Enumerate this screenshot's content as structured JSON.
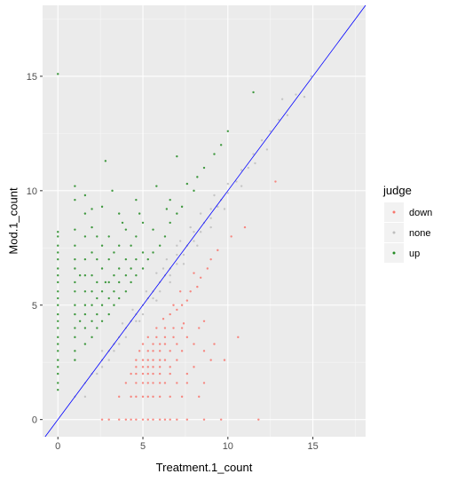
{
  "chart_data": {
    "type": "scatter",
    "xlabel": "Treatment.1_count",
    "ylabel": "Mod.1_count",
    "xlim": [
      -0.9,
      18.1
    ],
    "ylim": [
      -0.75,
      18.1
    ],
    "x_ticks": [
      0,
      5,
      10,
      15
    ],
    "y_ticks": [
      0,
      5,
      10,
      15
    ],
    "grid": true,
    "background": "#ebebeb",
    "legend": {
      "title": "judge",
      "position": "right",
      "entries": [
        {
          "label": "down",
          "color": "#f8766d"
        },
        {
          "label": "none",
          "color": "#bebebe"
        },
        {
          "label": "up",
          "color": "#228b22"
        }
      ]
    },
    "reference_line": {
      "type": "identity",
      "slope": 1,
      "intercept": 0,
      "color": "#0000ff"
    },
    "series": [
      {
        "name": "none",
        "color": "#bebebe",
        "points": [
          [
            1.0,
            1.0
          ],
          [
            1.6,
            1.0
          ],
          [
            2.0,
            2.0
          ],
          [
            2.3,
            2.0
          ],
          [
            2.6,
            2.6
          ],
          [
            3.0,
            2.6
          ],
          [
            3.0,
            3.0
          ],
          [
            3.3,
            3.3
          ],
          [
            3.6,
            3.3
          ],
          [
            3.6,
            3.6
          ],
          [
            4.0,
            3.6
          ],
          [
            4.0,
            4.0
          ],
          [
            4.3,
            4.3
          ],
          [
            4.6,
            4.3
          ],
          [
            4.6,
            4.6
          ],
          [
            5.0,
            4.6
          ],
          [
            5.0,
            5.0
          ],
          [
            5.3,
            5.3
          ],
          [
            5.6,
            5.3
          ],
          [
            5.6,
            5.6
          ],
          [
            6.0,
            5.6
          ],
          [
            6.0,
            6.0
          ],
          [
            6.3,
            6.3
          ],
          [
            6.6,
            6.3
          ],
          [
            6.6,
            6.6
          ],
          [
            7.0,
            6.8
          ],
          [
            7.0,
            7.2
          ],
          [
            7.4,
            7.2
          ],
          [
            7.6,
            7.6
          ],
          [
            8.0,
            7.8
          ],
          [
            8.0,
            8.2
          ],
          [
            8.4,
            8.2
          ],
          [
            8.6,
            8.6
          ],
          [
            9.0,
            8.8
          ],
          [
            9.0,
            9.2
          ],
          [
            9.4,
            9.3
          ],
          [
            9.6,
            9.6
          ],
          [
            10.0,
            9.9
          ],
          [
            10.0,
            10.3
          ],
          [
            10.5,
            10.4
          ],
          [
            10.8,
            10.9
          ],
          [
            11.2,
            11.0
          ],
          [
            11.5,
            11.6
          ],
          [
            12.0,
            12.2
          ],
          [
            12.5,
            12.6
          ],
          [
            13.0,
            13.1
          ],
          [
            13.5,
            13.3
          ],
          [
            14.0,
            14.2
          ],
          [
            14.5,
            14.1
          ],
          [
            13.2,
            14.0
          ],
          [
            14.9,
            15.0
          ],
          [
            5.2,
            5.6
          ],
          [
            5.8,
            6.4
          ],
          [
            6.4,
            7.0
          ],
          [
            7.0,
            7.6
          ],
          [
            7.8,
            8.4
          ],
          [
            8.4,
            9.0
          ],
          [
            9.2,
            9.8
          ],
          [
            6.6,
            6.0
          ],
          [
            7.4,
            6.8
          ],
          [
            8.2,
            7.6
          ],
          [
            9.0,
            8.4
          ],
          [
            9.8,
            9.2
          ],
          [
            3.8,
            4.2
          ],
          [
            4.4,
            4.8
          ],
          [
            2.6,
            3.0
          ],
          [
            3.3,
            3.0
          ],
          [
            4.8,
            4.3
          ],
          [
            1.6,
            1.6
          ],
          [
            2.6,
            2.3
          ],
          [
            5.8,
            5.2
          ],
          [
            6.2,
            6.6
          ],
          [
            7.2,
            7.8
          ],
          [
            10.8,
            10.2
          ],
          [
            11.6,
            11.2
          ],
          [
            12.3,
            11.8
          ]
        ]
      },
      {
        "name": "down",
        "color": "#f8766d",
        "points": [
          [
            2.6,
            0.0
          ],
          [
            3.0,
            0.0
          ],
          [
            3.6,
            0.0
          ],
          [
            4.0,
            0.0
          ],
          [
            4.3,
            0.0
          ],
          [
            4.6,
            0.0
          ],
          [
            5.0,
            0.0
          ],
          [
            5.3,
            0.0
          ],
          [
            5.6,
            0.0
          ],
          [
            6.0,
            0.0
          ],
          [
            6.3,
            0.0
          ],
          [
            6.6,
            0.0
          ],
          [
            7.0,
            0.0
          ],
          [
            7.6,
            0.0
          ],
          [
            8.6,
            0.0
          ],
          [
            9.6,
            0.0
          ],
          [
            11.8,
            0.0
          ],
          [
            3.6,
            1.0
          ],
          [
            4.3,
            1.0
          ],
          [
            4.6,
            1.0
          ],
          [
            5.0,
            1.0
          ],
          [
            5.3,
            1.0
          ],
          [
            5.6,
            1.0
          ],
          [
            6.0,
            1.0
          ],
          [
            6.6,
            1.0
          ],
          [
            7.3,
            1.0
          ],
          [
            8.3,
            1.0
          ],
          [
            4.0,
            1.6
          ],
          [
            4.6,
            1.6
          ],
          [
            5.0,
            1.6
          ],
          [
            5.3,
            1.6
          ],
          [
            5.6,
            1.6
          ],
          [
            6.0,
            1.6
          ],
          [
            6.3,
            1.6
          ],
          [
            7.0,
            1.6
          ],
          [
            7.6,
            1.6
          ],
          [
            8.6,
            1.6
          ],
          [
            4.3,
            2.0
          ],
          [
            4.6,
            2.0
          ],
          [
            5.0,
            2.0
          ],
          [
            5.3,
            2.0
          ],
          [
            5.6,
            2.0
          ],
          [
            6.0,
            2.0
          ],
          [
            6.6,
            2.0
          ],
          [
            7.6,
            2.0
          ],
          [
            4.6,
            2.3
          ],
          [
            5.0,
            2.3
          ],
          [
            5.3,
            2.3
          ],
          [
            5.6,
            2.3
          ],
          [
            6.0,
            2.3
          ],
          [
            6.6,
            2.3
          ],
          [
            8.0,
            2.3
          ],
          [
            4.6,
            2.6
          ],
          [
            5.0,
            2.6
          ],
          [
            5.3,
            2.6
          ],
          [
            5.6,
            2.6
          ],
          [
            6.0,
            2.6
          ],
          [
            6.3,
            2.6
          ],
          [
            7.0,
            2.6
          ],
          [
            9.0,
            2.6
          ],
          [
            4.8,
            3.0
          ],
          [
            5.3,
            3.0
          ],
          [
            5.6,
            3.0
          ],
          [
            6.0,
            3.0
          ],
          [
            6.6,
            3.0
          ],
          [
            7.3,
            3.0
          ],
          [
            8.6,
            3.0
          ],
          [
            5.0,
            3.3
          ],
          [
            5.6,
            3.3
          ],
          [
            6.0,
            3.3
          ],
          [
            6.3,
            3.3
          ],
          [
            7.0,
            3.3
          ],
          [
            8.0,
            3.3
          ],
          [
            5.3,
            3.6
          ],
          [
            5.8,
            3.6
          ],
          [
            6.3,
            3.6
          ],
          [
            6.8,
            3.6
          ],
          [
            7.6,
            3.6
          ],
          [
            10.6,
            3.6
          ],
          [
            5.8,
            4.0
          ],
          [
            6.3,
            4.0
          ],
          [
            6.8,
            4.0
          ],
          [
            7.3,
            4.0
          ],
          [
            8.3,
            4.0
          ],
          [
            6.2,
            4.4
          ],
          [
            6.6,
            4.6
          ],
          [
            7.0,
            4.8
          ],
          [
            7.3,
            5.0
          ],
          [
            7.6,
            5.2
          ],
          [
            7.8,
            5.6
          ],
          [
            8.2,
            5.8
          ],
          [
            8.4,
            6.2
          ],
          [
            8.8,
            6.6
          ],
          [
            9.0,
            7.0
          ],
          [
            9.4,
            7.4
          ],
          [
            10.2,
            8.0
          ],
          [
            11.0,
            8.4
          ],
          [
            12.8,
            10.4
          ],
          [
            8.6,
            4.3
          ],
          [
            9.2,
            3.3
          ],
          [
            9.8,
            2.6
          ],
          [
            7.4,
            4.2
          ],
          [
            6.8,
            5.0
          ],
          [
            7.2,
            5.6
          ],
          [
            8.0,
            6.4
          ]
        ]
      },
      {
        "name": "up",
        "color": "#228b22",
        "points": [
          [
            0.0,
            15.1
          ],
          [
            0.0,
            1.3
          ],
          [
            0.0,
            1.6
          ],
          [
            0.0,
            2.0
          ],
          [
            0.0,
            2.3
          ],
          [
            0.0,
            2.6
          ],
          [
            0.0,
            3.0
          ],
          [
            0.0,
            3.3
          ],
          [
            0.0,
            3.6
          ],
          [
            0.0,
            4.0
          ],
          [
            0.0,
            4.3
          ],
          [
            0.0,
            4.6
          ],
          [
            0.0,
            5.0
          ],
          [
            0.0,
            5.3
          ],
          [
            0.0,
            5.6
          ],
          [
            0.0,
            6.0
          ],
          [
            0.0,
            6.3
          ],
          [
            0.0,
            6.6
          ],
          [
            0.0,
            7.0
          ],
          [
            0.0,
            7.3
          ],
          [
            0.0,
            7.6
          ],
          [
            0.0,
            8.0
          ],
          [
            0.0,
            8.2
          ],
          [
            1.0,
            2.6
          ],
          [
            1.0,
            3.0
          ],
          [
            1.0,
            3.6
          ],
          [
            1.0,
            4.0
          ],
          [
            1.0,
            4.6
          ],
          [
            1.0,
            5.0
          ],
          [
            1.0,
            5.6
          ],
          [
            1.0,
            6.0
          ],
          [
            1.0,
            6.6
          ],
          [
            1.0,
            7.0
          ],
          [
            1.0,
            7.6
          ],
          [
            1.0,
            8.3
          ],
          [
            1.0,
            9.6
          ],
          [
            1.0,
            10.2
          ],
          [
            1.6,
            3.3
          ],
          [
            1.6,
            4.0
          ],
          [
            1.6,
            4.6
          ],
          [
            1.6,
            5.0
          ],
          [
            1.6,
            5.6
          ],
          [
            1.6,
            6.3
          ],
          [
            1.6,
            7.0
          ],
          [
            1.6,
            8.0
          ],
          [
            1.6,
            9.0
          ],
          [
            1.6,
            9.8
          ],
          [
            2.0,
            3.6
          ],
          [
            2.0,
            4.3
          ],
          [
            2.0,
            5.0
          ],
          [
            2.0,
            5.6
          ],
          [
            2.0,
            6.3
          ],
          [
            2.0,
            7.3
          ],
          [
            2.0,
            8.4
          ],
          [
            2.0,
            9.2
          ],
          [
            2.3,
            4.0
          ],
          [
            2.3,
            4.6
          ],
          [
            2.3,
            5.3
          ],
          [
            2.3,
            6.0
          ],
          [
            2.3,
            7.0
          ],
          [
            2.3,
            8.0
          ],
          [
            2.6,
            4.3
          ],
          [
            2.6,
            5.0
          ],
          [
            2.6,
            5.6
          ],
          [
            2.6,
            6.6
          ],
          [
            2.6,
            7.6
          ],
          [
            2.6,
            9.3
          ],
          [
            2.8,
            11.3
          ],
          [
            3.0,
            4.6
          ],
          [
            3.0,
            5.3
          ],
          [
            3.0,
            6.0
          ],
          [
            3.0,
            7.0
          ],
          [
            3.0,
            8.0
          ],
          [
            3.2,
            10.0
          ],
          [
            3.3,
            5.0
          ],
          [
            3.3,
            5.6
          ],
          [
            3.3,
            6.3
          ],
          [
            3.3,
            7.3
          ],
          [
            3.6,
            5.3
          ],
          [
            3.6,
            6.0
          ],
          [
            3.6,
            6.6
          ],
          [
            3.6,
            7.6
          ],
          [
            3.6,
            9.0
          ],
          [
            4.0,
            5.6
          ],
          [
            4.0,
            6.3
          ],
          [
            4.0,
            7.0
          ],
          [
            4.0,
            8.3
          ],
          [
            4.3,
            6.0
          ],
          [
            4.3,
            6.6
          ],
          [
            4.3,
            7.6
          ],
          [
            4.6,
            6.3
          ],
          [
            4.6,
            7.0
          ],
          [
            4.6,
            8.0
          ],
          [
            4.6,
            9.6
          ],
          [
            5.0,
            6.6
          ],
          [
            5.0,
            7.3
          ],
          [
            5.0,
            8.6
          ],
          [
            5.3,
            7.0
          ],
          [
            5.6,
            7.3
          ],
          [
            5.6,
            8.3
          ],
          [
            6.0,
            7.6
          ],
          [
            6.3,
            8.0
          ],
          [
            6.6,
            8.6
          ],
          [
            6.6,
            9.6
          ],
          [
            7.0,
            9.0
          ],
          [
            7.3,
            9.3
          ],
          [
            7.6,
            10.3
          ],
          [
            8.0,
            10.0
          ],
          [
            8.2,
            10.6
          ],
          [
            8.6,
            11.0
          ],
          [
            9.2,
            11.6
          ],
          [
            9.6,
            12.0
          ],
          [
            10.0,
            12.6
          ],
          [
            11.5,
            14.3
          ],
          [
            7.0,
            11.5
          ],
          [
            1.3,
            6.3
          ],
          [
            1.3,
            4.3
          ],
          [
            2.8,
            6.0
          ],
          [
            3.8,
            8.6
          ],
          [
            4.8,
            9.0
          ],
          [
            5.8,
            10.2
          ],
          [
            6.4,
            9.2
          ]
        ]
      }
    ]
  }
}
